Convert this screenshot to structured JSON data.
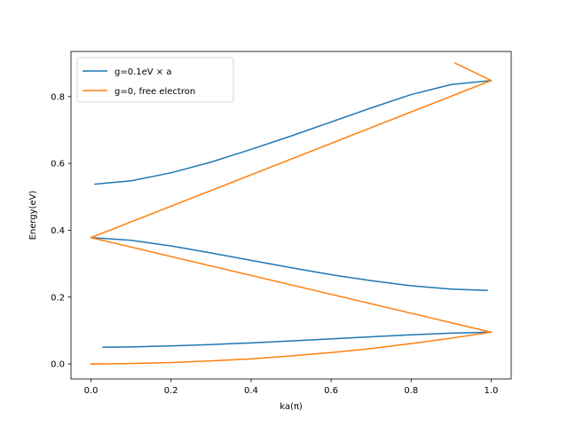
{
  "chart_data": {
    "type": "line",
    "title": "",
    "xlabel": "ka(π)",
    "ylabel": "Energy(eV)",
    "xlim": [
      -0.05,
      1.05
    ],
    "ylim": [
      -0.045,
      0.935
    ],
    "xticks": [
      0.0,
      0.2,
      0.4,
      0.6,
      0.8,
      1.0
    ],
    "xtick_labels": [
      "0.0",
      "0.2",
      "0.4",
      "0.6",
      "0.8",
      "1.0"
    ],
    "yticks": [
      0.0,
      0.2,
      0.4,
      0.6,
      0.8
    ],
    "ytick_labels": [
      "0.0",
      "0.2",
      "0.4",
      "0.6",
      "0.8"
    ],
    "grid": false,
    "legend": "top-left",
    "series": [
      {
        "name": "g=0.1eV × a",
        "color": "#1f77b4",
        "segments": [
          {
            "x": [
              0.03,
              0.1,
              0.2,
              0.3,
              0.4,
              0.5,
              0.6,
              0.7,
              0.8,
              0.9,
              1.0
            ],
            "y": [
              0.05,
              0.051,
              0.054,
              0.058,
              0.063,
              0.069,
              0.075,
              0.081,
              0.087,
              0.092,
              0.095
            ]
          },
          {
            "x": [
              0.0,
              0.1,
              0.2,
              0.3,
              0.4,
              0.5,
              0.6,
              0.7,
              0.8,
              0.9,
              0.99
            ],
            "y": [
              0.378,
              0.37,
              0.353,
              0.332,
              0.31,
              0.288,
              0.267,
              0.249,
              0.234,
              0.224,
              0.22
            ]
          },
          {
            "x": [
              0.01,
              0.1,
              0.2,
              0.3,
              0.4,
              0.5,
              0.6,
              0.7,
              0.8,
              0.9,
              1.0
            ],
            "y": [
              0.538,
              0.548,
              0.572,
              0.604,
              0.642,
              0.682,
              0.724,
              0.766,
              0.806,
              0.836,
              0.848
            ]
          }
        ]
      },
      {
        "name": "g=0, free electron",
        "color": "#ff7f0e",
        "segments": [
          {
            "x": [
              0.0,
              0.1,
              0.2,
              0.3,
              0.4,
              0.5,
              0.6,
              0.7,
              0.8,
              0.9,
              1.0
            ],
            "y": [
              0.0,
              0.001,
              0.004,
              0.009,
              0.015,
              0.024,
              0.034,
              0.046,
              0.061,
              0.077,
              0.095
            ]
          },
          {
            "x": [
              1.0,
              0.0,
              1.0,
              0.91
            ],
            "y": [
              0.095,
              0.378,
              0.848,
              0.9
            ]
          }
        ]
      }
    ]
  }
}
